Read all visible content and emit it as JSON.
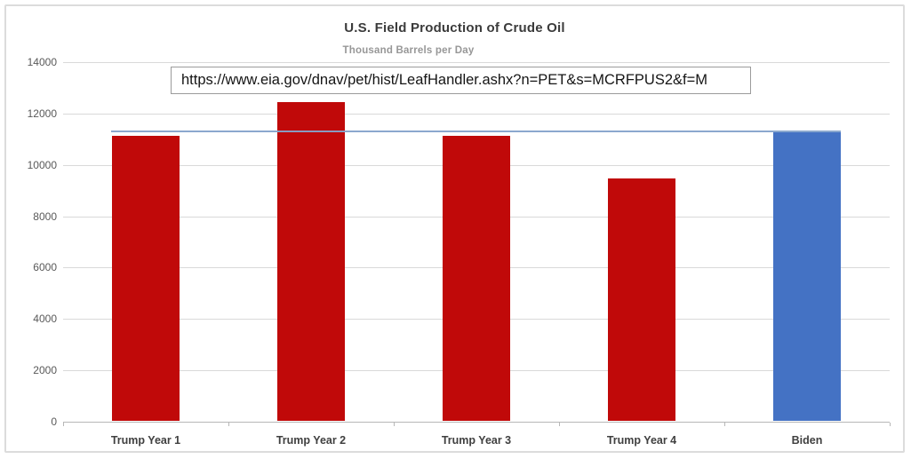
{
  "chart_data": {
    "type": "bar",
    "title": "U.S. Field Production of Crude Oil",
    "subtitle": "Thousand Barrels per Day",
    "categories": [
      "Trump Year 1",
      "Trump Year 2",
      "Trump Year 3",
      "Trump Year 4",
      "Biden"
    ],
    "values": [
      11100,
      12400,
      11100,
      9450,
      11250
    ],
    "bar_colors": [
      "#c00909",
      "#c00909",
      "#c00909",
      "#c00909",
      "#4472c4"
    ],
    "ylim": [
      0,
      14000
    ],
    "yticks": [
      0,
      2000,
      4000,
      6000,
      8000,
      10000,
      12000,
      14000
    ],
    "ytick_labels": [
      "0",
      "2000",
      "4000",
      "6000",
      "8000",
      "10000",
      "12000",
      "14000"
    ],
    "xlabel": "",
    "ylabel": "",
    "grid": "horizontal",
    "legend": "none",
    "reference_line": {
      "value": 11300,
      "color": "#85a3cb",
      "description": "horizontal comparison line at Biden production level, spanning from Trump Year 1 bar to Biden bar"
    }
  },
  "overlay": {
    "url_text": "https://www.eia.gov/dnav/pet/hist/LeafHandler.ashx?n=PET&s=MCRFPUS2&f=M"
  }
}
